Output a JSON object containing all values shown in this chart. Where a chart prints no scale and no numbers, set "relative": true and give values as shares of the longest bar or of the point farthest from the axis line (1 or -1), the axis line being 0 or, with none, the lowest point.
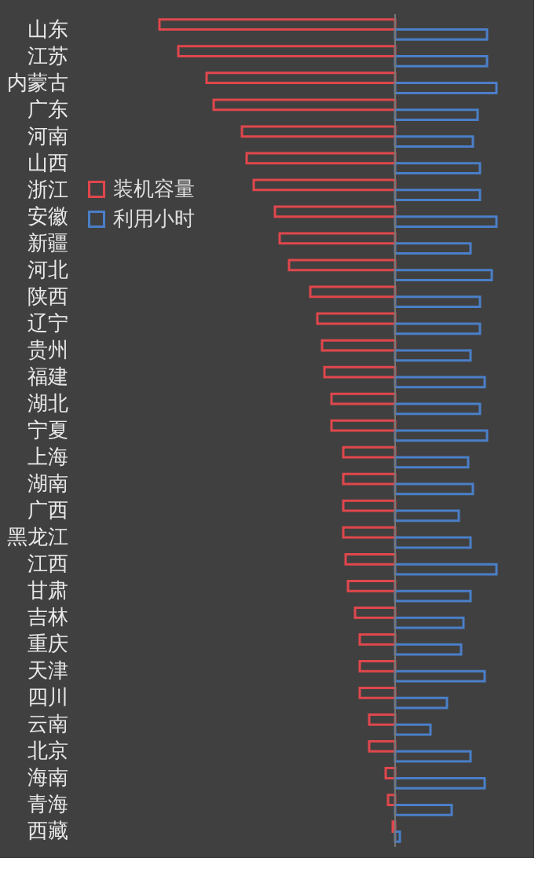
{
  "chart_data": {
    "type": "bar",
    "orientation": "horizontal",
    "relative": true,
    "categories": [
      "山东",
      "江苏",
      "内蒙古",
      "广东",
      "河南",
      "山西",
      "浙江",
      "安徽",
      "新疆",
      "河北",
      "陕西",
      "辽宁",
      "贵州",
      "福建",
      "湖北",
      "宁夏",
      "上海",
      "湖南",
      "广西",
      "黑龙江",
      "江西",
      "甘肃",
      "吉林",
      "重庆",
      "天津",
      "四川",
      "云南",
      "北京",
      "海南",
      "青海",
      "西藏"
    ],
    "series": [
      {
        "name": "装机容量",
        "color": "#e0474c",
        "values": [
          -1.0,
          -0.92,
          -0.8,
          -0.77,
          -0.65,
          -0.63,
          -0.6,
          -0.51,
          -0.49,
          -0.45,
          -0.36,
          -0.33,
          -0.31,
          -0.3,
          -0.27,
          -0.27,
          -0.22,
          -0.22,
          -0.22,
          -0.22,
          -0.21,
          -0.2,
          -0.17,
          -0.15,
          -0.15,
          -0.15,
          -0.11,
          -0.11,
          -0.04,
          -0.03,
          -0.01
        ]
      },
      {
        "name": "利用小时",
        "color": "#4a7fc8",
        "values": [
          0.39,
          0.39,
          0.43,
          0.35,
          0.33,
          0.36,
          0.36,
          0.43,
          0.32,
          0.41,
          0.36,
          0.36,
          0.32,
          0.38,
          0.36,
          0.39,
          0.31,
          0.33,
          0.27,
          0.32,
          0.43,
          0.32,
          0.29,
          0.28,
          0.38,
          0.22,
          0.15,
          0.32,
          0.38,
          0.24,
          0.02
        ]
      }
    ],
    "legend": "left"
  }
}
